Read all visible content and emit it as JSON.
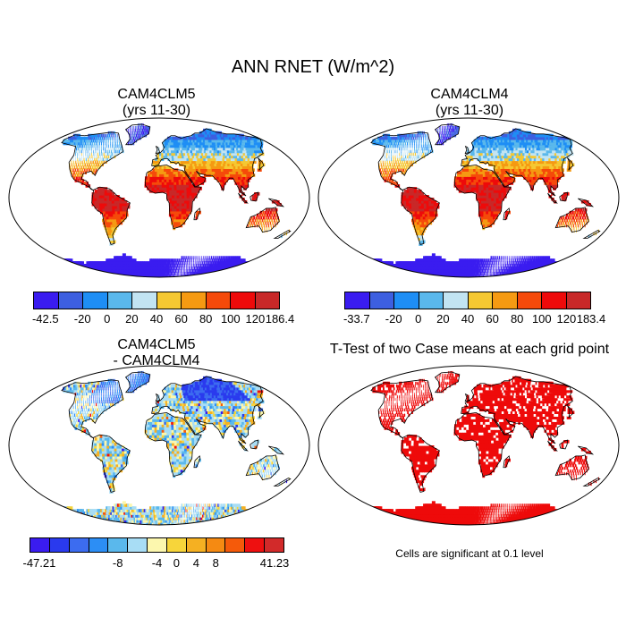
{
  "title": "ANN RNET (W/m^2)",
  "panels": {
    "p1": {
      "title_line1": "CAM4CLM5",
      "title_line2": "(yrs 11-30)"
    },
    "p2": {
      "title_line1": "CAM4CLM4",
      "title_line2": "(yrs 11-30)"
    },
    "p3": {
      "title_line1": "CAM4CLM5",
      "title_line2": "- CAM4CLM4"
    },
    "p4": {
      "title_line1": "T-Test of two Case means at each grid point",
      "footnote": "Cells are significant at 0.1 level"
    }
  },
  "colorbars": {
    "cb1": {
      "labels": [
        "-42.5",
        "-20",
        "0",
        "20",
        "40",
        "60",
        "80",
        "100",
        "120",
        "186.4"
      ],
      "colors": [
        "#3a1cf0",
        "#3d5fe0",
        "#1e8ef5",
        "#5ab8ec",
        "#c2e4f2",
        "#f5c832",
        "#f59a12",
        "#f54a0a",
        "#ee0a0a",
        "#c82828"
      ]
    },
    "cb2": {
      "labels": [
        "-33.7",
        "-20",
        "0",
        "20",
        "40",
        "60",
        "80",
        "100",
        "120",
        "183.4"
      ],
      "colors": [
        "#3a1cf0",
        "#3d5fe0",
        "#1e8ef5",
        "#5ab8ec",
        "#c2e4f2",
        "#f5c832",
        "#f59a12",
        "#f54a0a",
        "#ee0a0a",
        "#c82828"
      ]
    },
    "cb3": {
      "labels": [
        "-47.21",
        "-8",
        "-4",
        "0",
        "4",
        "8",
        "41.23"
      ],
      "colors": [
        "#3a1cf0",
        "#2a3aee",
        "#3c6cf0",
        "#2c8ef5",
        "#5ab8ec",
        "#a8ddf5",
        "#fcf7ae",
        "#f7d53a",
        "#f5b022",
        "#f58a12",
        "#f55a0a",
        "#ee1010",
        "#d22a2a"
      ]
    }
  }
}
